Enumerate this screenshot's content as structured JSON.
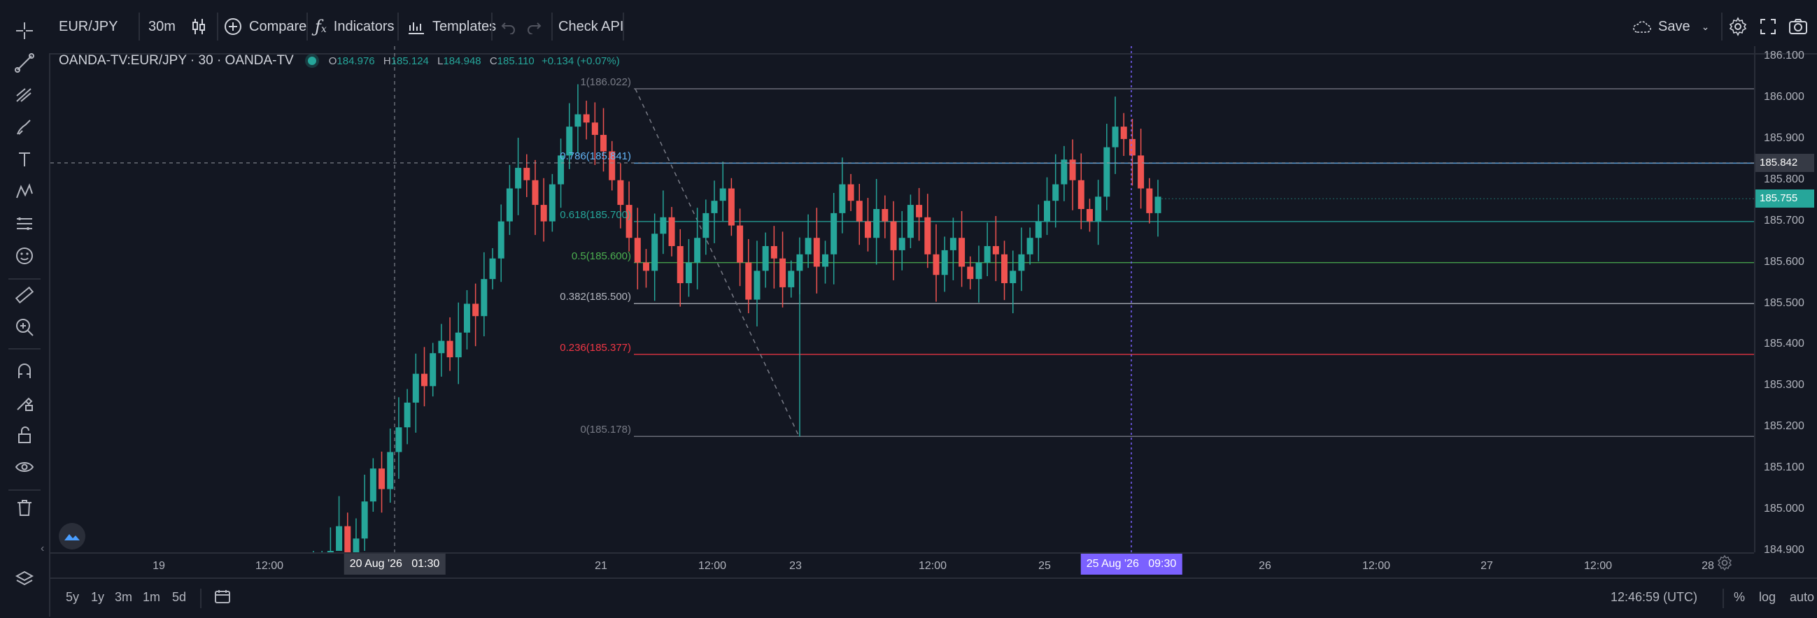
{
  "toolbar": {
    "symbol": "EUR/JPY",
    "interval": "30m",
    "compare_label": "Compare",
    "indicators_label": "Indicators",
    "templates_label": "Templates",
    "check_api_label": "Check API",
    "save_label": "Save"
  },
  "legend": {
    "title": "OANDA-TV:EUR/JPY · 30 · OANDA-TV",
    "o_label": "O",
    "o_value": "184.976",
    "h_label": "H",
    "h_value": "185.124",
    "l_label": "L",
    "l_value": "184.948",
    "c_label": "C",
    "c_value": "185.110",
    "change": "+0.134 (+0.07%)"
  },
  "fib_levels": [
    {
      "label": "1(186.022)",
      "color": "#787b86"
    },
    {
      "label": "0.786(185.841)",
      "color": "#64b5f6"
    },
    {
      "label": "0.618(185.700)",
      "color": "#26a69a"
    },
    {
      "label": "0.5(185.600)",
      "color": "#4caf50"
    },
    {
      "label": "0.382(185.500)",
      "color": "#b2b5be"
    },
    {
      "label": "0.236(185.377)",
      "color": "#f23645"
    },
    {
      "label": "0(185.178)",
      "color": "#787b86"
    }
  ],
  "price_axis": {
    "ticks": [
      "186.100",
      "186.000",
      "185.900",
      "185.800",
      "185.700",
      "185.600",
      "185.500",
      "185.400",
      "185.300",
      "185.200",
      "185.100",
      "185.000",
      "184.900"
    ],
    "crosshair_price": "185.842",
    "last_price": "185.755",
    "last_price_color": "#26a69a"
  },
  "time_axis": {
    "ticks": [
      "19",
      "12:00",
      "21",
      "12:00",
      "23",
      "12:00",
      "25",
      "26",
      "12:00",
      "27",
      "12:00",
      "28"
    ],
    "crosshair_label_left": "20 Aug '26   01:30",
    "crosshair_label_right": "25 Aug '26   09:30"
  },
  "bottom_bar": {
    "ranges": [
      "5y",
      "1y",
      "3m",
      "1m",
      "5d"
    ],
    "clock": "12:46:59 (UTC)",
    "percent": "%",
    "log": "log",
    "auto": "auto"
  },
  "chart_data": {
    "type": "candlestick",
    "symbol": "OANDA-TV:EUR/JPY",
    "interval": "30",
    "ylim": [
      184.86,
      186.13
    ],
    "up_color": "#26a69a",
    "down_color": "#ef5350",
    "fibonacci": {
      "high": 186.022,
      "low": 185.178
    },
    "candles_close": [
      184.78,
      184.84,
      184.9,
      184.96,
      184.88,
      184.93,
      185.02,
      185.1,
      185.05,
      185.14,
      185.2,
      185.26,
      185.33,
      185.3,
      185.38,
      185.41,
      185.37,
      185.43,
      185.5,
      185.47,
      185.56,
      185.61,
      185.7,
      185.78,
      185.83,
      185.8,
      185.74,
      185.7,
      185.79,
      185.86,
      185.93,
      185.96,
      185.94,
      185.91,
      185.87,
      185.8,
      185.74,
      185.66,
      185.6,
      185.58,
      185.67,
      185.71,
      185.64,
      185.55,
      185.6,
      185.66,
      185.72,
      185.75,
      185.78,
      185.69,
      185.6,
      185.51,
      185.58,
      185.64,
      185.61,
      185.54,
      185.58,
      185.62,
      185.66,
      185.59,
      185.62,
      185.72,
      185.79,
      185.75,
      185.7,
      185.66,
      185.73,
      185.7,
      185.63,
      185.66,
      185.74,
      185.71,
      185.62,
      185.57,
      185.63,
      185.66,
      185.59,
      185.56,
      185.6,
      185.64,
      185.62,
      185.55,
      185.58,
      185.62,
      185.66,
      185.7,
      185.75,
      185.79,
      185.85,
      185.8,
      185.73,
      185.7,
      185.76,
      185.88,
      185.93,
      185.9,
      185.86,
      185.78,
      185.72,
      185.76
    ],
    "fib_levels": [
      1,
      0.786,
      0.618,
      0.5,
      0.382,
      0.236,
      0
    ]
  }
}
